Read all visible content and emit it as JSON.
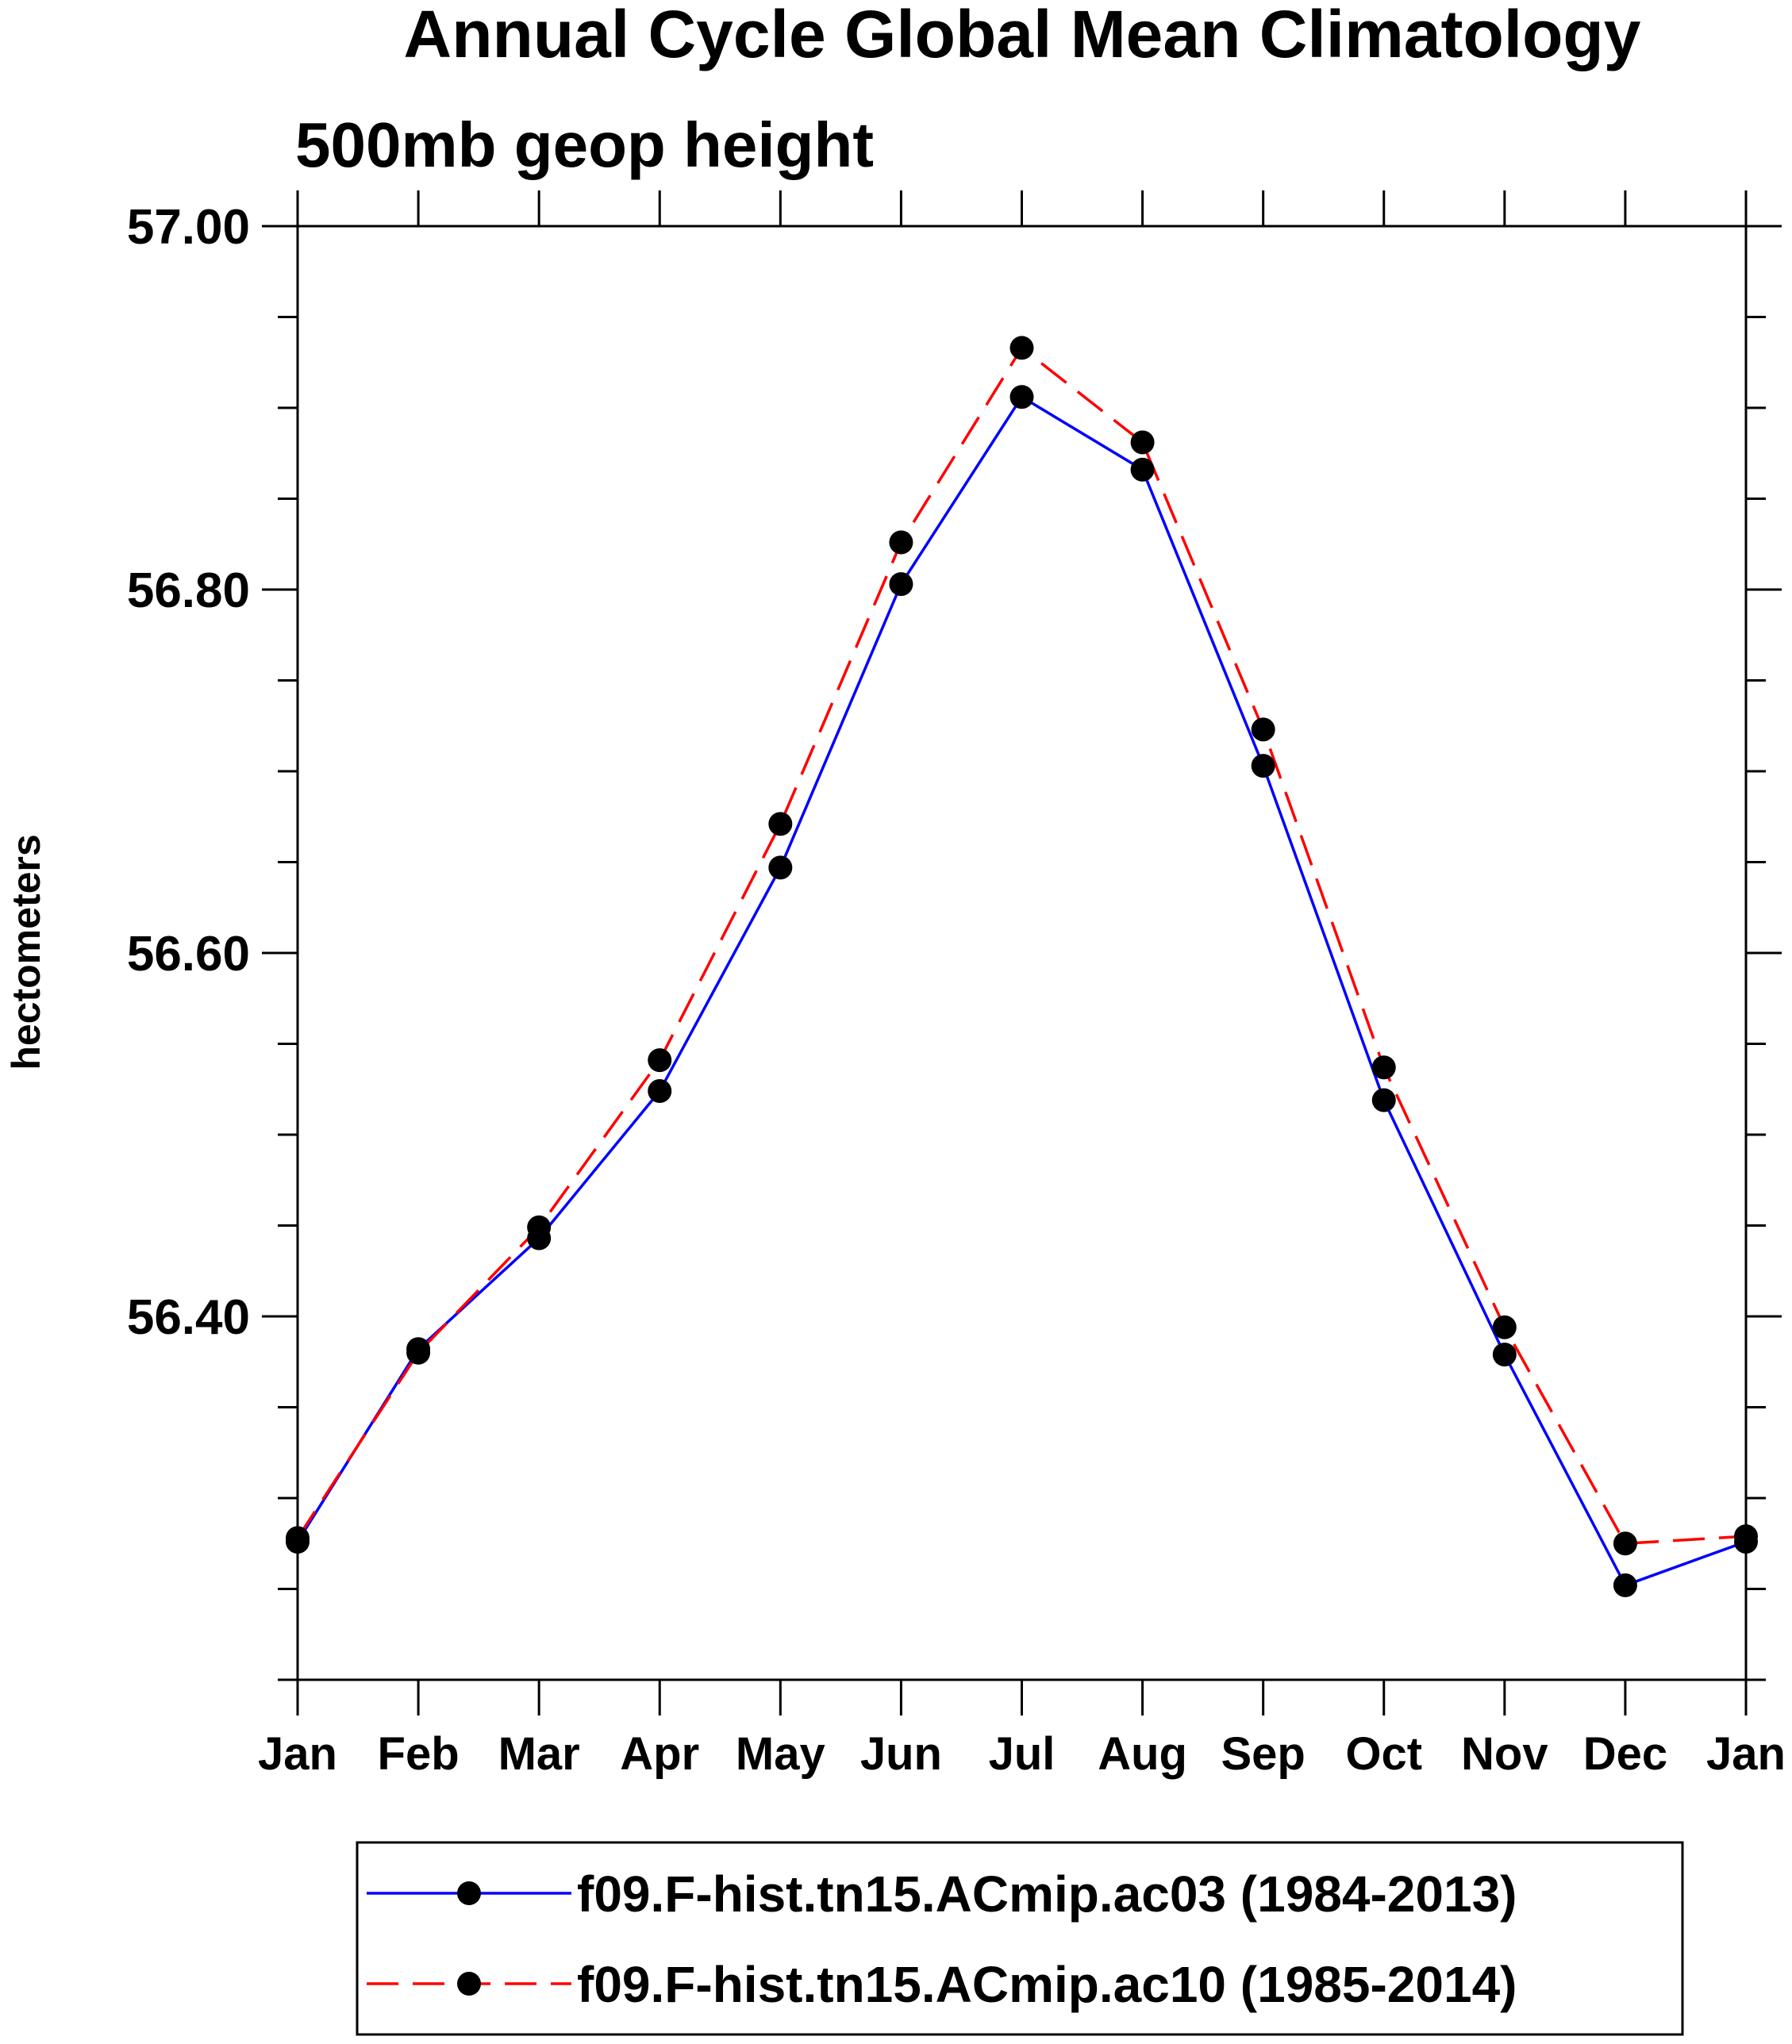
{
  "chart_data": {
    "type": "line",
    "title": "Annual Cycle Global Mean Climatology",
    "subtitle": "500mb geop height",
    "xlabel": "",
    "ylabel": "hectometers",
    "categories": [
      "Jan",
      "Feb",
      "Mar",
      "Apr",
      "May",
      "Jun",
      "Jul",
      "Aug",
      "Sep",
      "Oct",
      "Nov",
      "Dec",
      "Jan"
    ],
    "yticks": [
      "56.40",
      "56.60",
      "56.80",
      "57.00"
    ],
    "ylim": [
      56.2,
      57.0
    ],
    "legend_position": "bottom",
    "grid": false,
    "series": [
      {
        "name": "f09.F-hist.tn15.ACmip.ac03 (1984-2013)",
        "color": "#0000ff",
        "line_style": "solid",
        "marker": "filled-circle",
        "values": [
          56.276,
          56.382,
          56.443,
          56.524,
          56.647,
          56.803,
          56.906,
          56.866,
          56.703,
          56.519,
          56.379,
          56.252,
          56.276
        ]
      },
      {
        "name": "f09.F-hist.tn15.ACmip.ac10 (1985-2014)",
        "color": "#ff0000",
        "line_style": "dashed",
        "marker": "filled-circle",
        "values": [
          56.278,
          56.38,
          56.449,
          56.541,
          56.671,
          56.826,
          56.933,
          56.881,
          56.723,
          56.537,
          56.394,
          56.275,
          56.279
        ]
      }
    ]
  }
}
